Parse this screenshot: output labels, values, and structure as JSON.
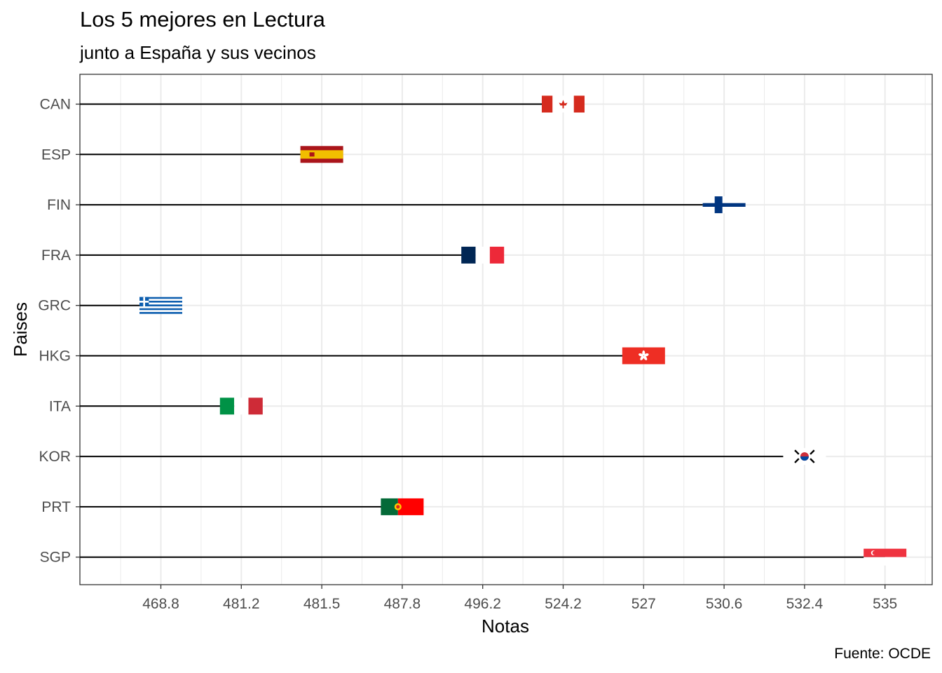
{
  "chart_data": {
    "type": "lollipop",
    "title": "Los 5 mejores en Lectura",
    "subtitle": "junto a España y sus vecinos",
    "caption": "Fuente: OCDE",
    "xlabel": "Notas",
    "ylabel": "Paises",
    "x_ticks": [
      "468.8",
      "481.2",
      "481.5",
      "487.8",
      "496.2",
      "524.2",
      "527",
      "530.6",
      "532.4",
      "535"
    ],
    "categories": [
      "SGP",
      "PRT",
      "KOR",
      "ITA",
      "HKG",
      "GRC",
      "FRA",
      "FIN",
      "ESP",
      "CAN"
    ],
    "values": [
      535,
      487.8,
      532.4,
      481.2,
      527,
      468.8,
      496.2,
      530.6,
      481.5,
      524.2
    ],
    "markers": [
      {
        "country": "SGP",
        "flag": "singapore-flag"
      },
      {
        "country": "PRT",
        "flag": "portugal-flag"
      },
      {
        "country": "KOR",
        "flag": "south-korea-flag"
      },
      {
        "country": "ITA",
        "flag": "italy-flag"
      },
      {
        "country": "HKG",
        "flag": "hong-kong-flag"
      },
      {
        "country": "GRC",
        "flag": "greece-flag"
      },
      {
        "country": "FRA",
        "flag": "france-flag"
      },
      {
        "country": "FIN",
        "flag": "finland-flag"
      },
      {
        "country": "ESP",
        "flag": "spain-flag"
      },
      {
        "country": "CAN",
        "flag": "canada-flag"
      }
    ],
    "grid": true,
    "legend": "none",
    "colors": {
      "line": "#000000",
      "grid": "#ebebeb",
      "panel_border": "#333333"
    }
  }
}
